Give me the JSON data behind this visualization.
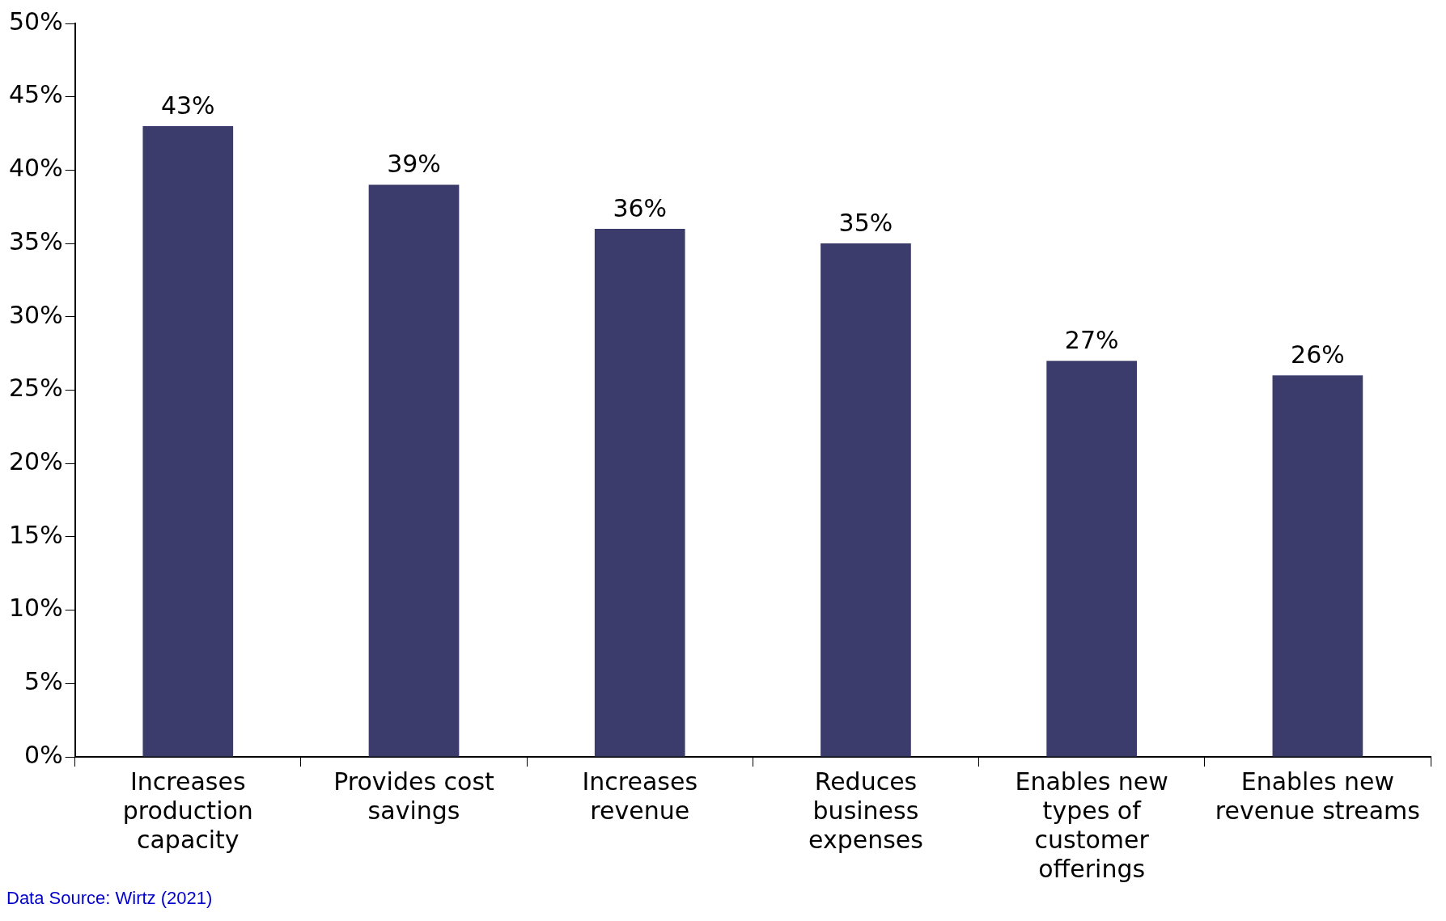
{
  "chart_data": {
    "type": "bar",
    "categories": [
      "Increases production capacity",
      "Provides cost savings",
      "Increases revenue",
      "Reduces business expenses",
      "Enables new types of customer offerings",
      "Enables new revenue streams"
    ],
    "values": [
      43,
      39,
      36,
      35,
      27,
      26
    ],
    "color": "#3c3c6c",
    "value_labels": [
      "43%",
      "39%",
      "36%",
      "35%",
      "27%",
      "26%"
    ],
    "ylim": [
      0,
      50
    ],
    "yticks": [
      {
        "value": 0,
        "label": "0%"
      },
      {
        "value": 5,
        "label": "5%"
      },
      {
        "value": 10,
        "label": "10%"
      },
      {
        "value": 15,
        "label": "15%"
      },
      {
        "value": 20,
        "label": "20%"
      },
      {
        "value": 25,
        "label": "25%"
      },
      {
        "value": 30,
        "label": "30%"
      },
      {
        "value": 35,
        "label": "35%"
      },
      {
        "value": 40,
        "label": "40%"
      },
      {
        "value": 45,
        "label": "45%"
      },
      {
        "value": 50,
        "label": "50%"
      }
    ],
    "grid": false,
    "legend": false,
    "annotations": [
      "Data Source: Wirtz (2021)"
    ]
  }
}
